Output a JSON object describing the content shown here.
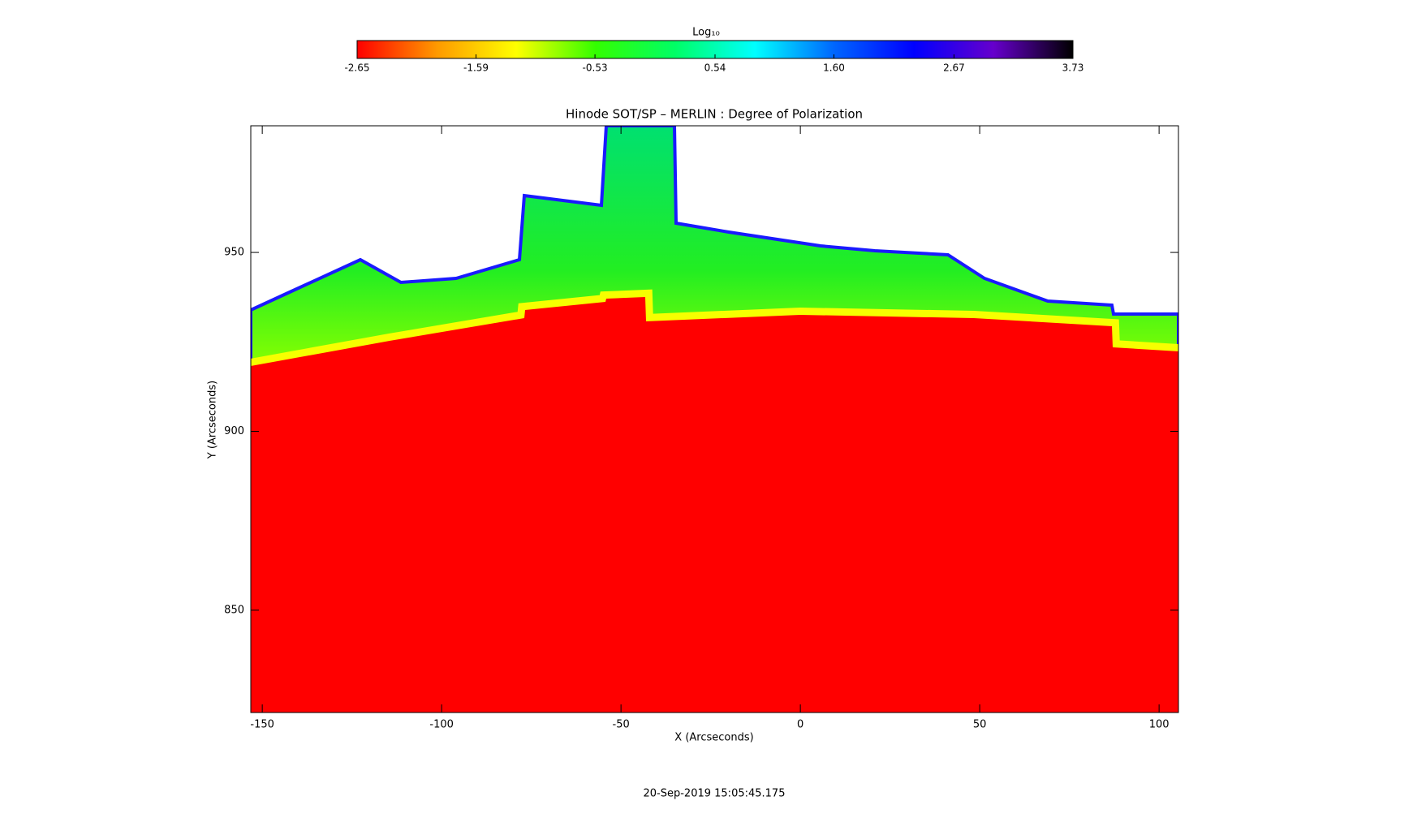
{
  "chart_data": {
    "type": "heatmap",
    "title": "Hinode SOT/SP – MERLIN : Degree of Polarization",
    "x_label": "X (Arcseconds)",
    "y_label": "Y (Arcseconds)",
    "xlim": [
      -153.2,
      105.4
    ],
    "xticks": [
      -150,
      -100,
      -50,
      0,
      50,
      100
    ],
    "ylim": [
      821.4,
      985.4
    ],
    "yticks": [
      850,
      900,
      950
    ],
    "colorbar": {
      "title": "Log₁₀",
      "clim": [
        -2.65,
        3.73
      ],
      "ticks": [
        -2.65,
        -1.59,
        -0.53,
        0.54,
        {
          "value": 1.6,
          "label": "1.60"
        },
        2.67,
        3.73
      ],
      "colors": [
        "#ff0000",
        "#ff9900",
        "#ffff00",
        "#33ff00",
        "#00ff66",
        "#00ffff",
        "#0066ff",
        "#0000ff",
        "#6600cc",
        "#000000"
      ]
    },
    "footer": "20-Sep-2019 15:05:45.175"
  }
}
